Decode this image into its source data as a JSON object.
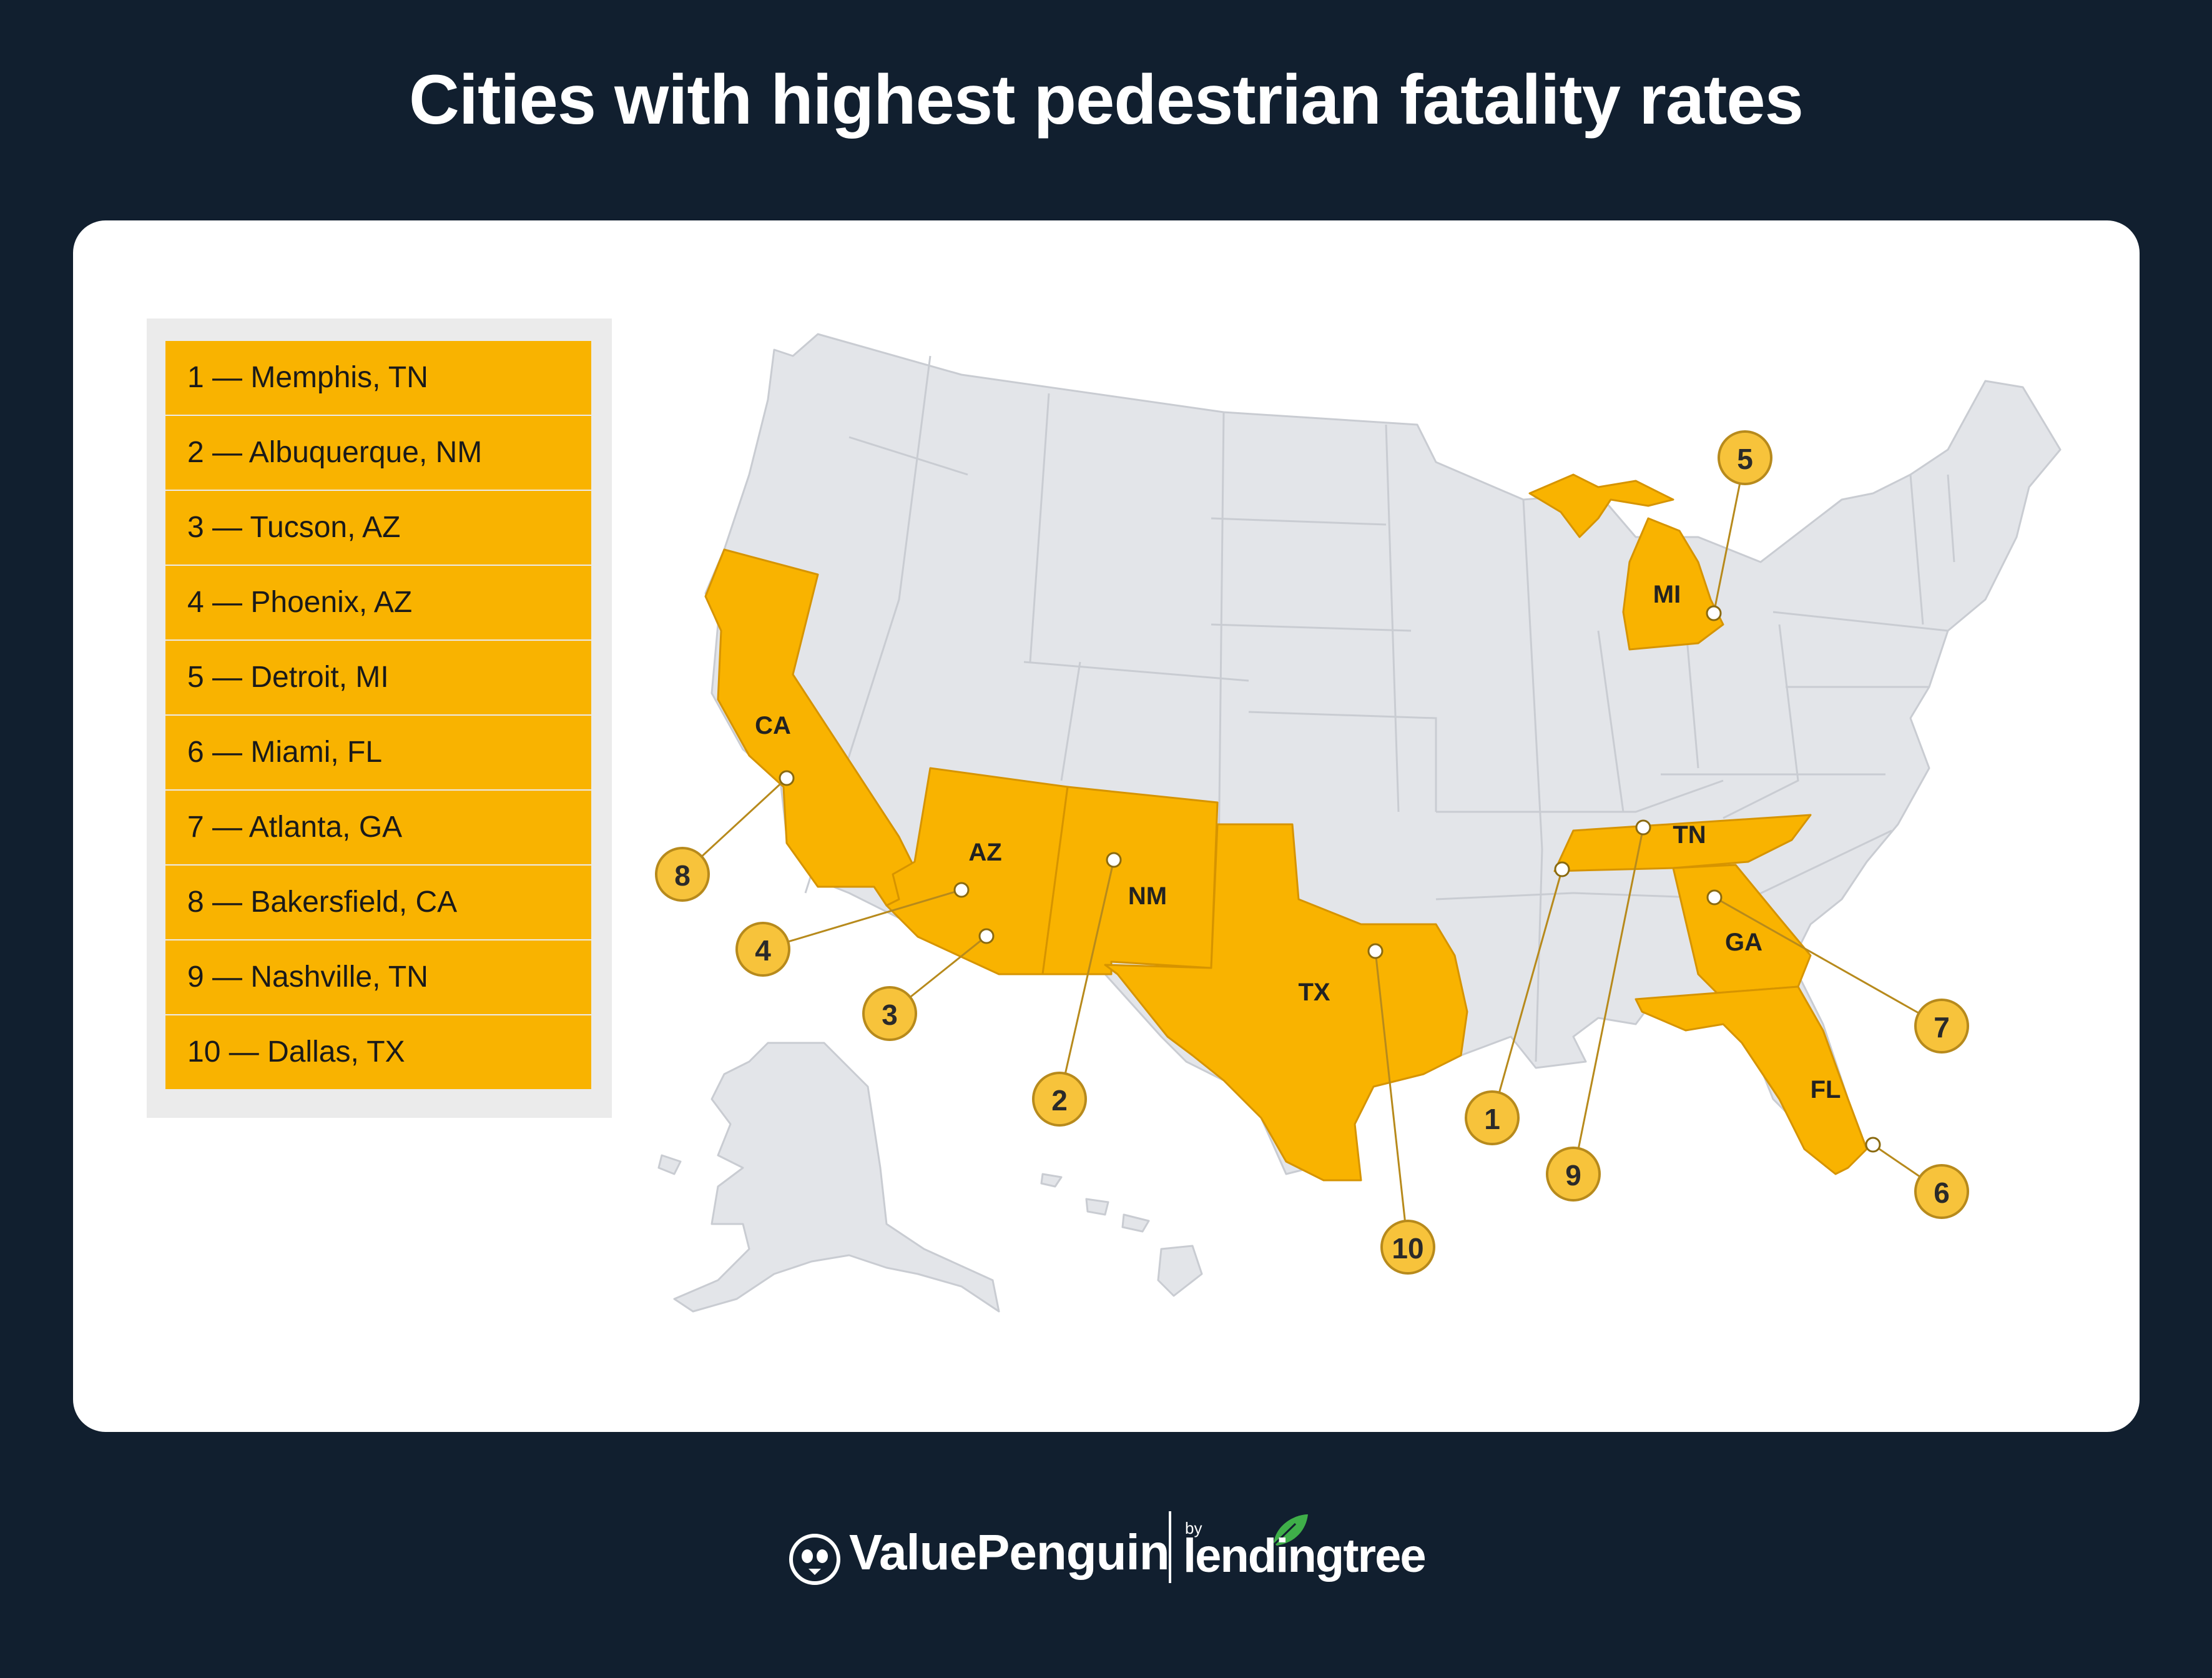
{
  "title": "Cities with highest pedestrian fatality rates",
  "legend": [
    "1 — Memphis, TN",
    "2 — Albuquerque, NM",
    "3 — Tucson, AZ",
    "4 — Phoenix, AZ",
    "5 — Detroit, MI",
    "6 — Miami, FL",
    "7 — Atlanta, GA",
    "8 — Bakersfield, CA",
    "9 — Nashville, TN",
    "10 — Dallas, TX"
  ],
  "state_labels": {
    "CA": "CA",
    "AZ": "AZ",
    "NM": "NM",
    "TX": "TX",
    "MI": "MI",
    "TN": "TN",
    "GA": "GA",
    "FL": "FL"
  },
  "markers": [
    "1",
    "2",
    "3",
    "4",
    "5",
    "6",
    "7",
    "8",
    "9",
    "10"
  ],
  "colors": {
    "background": "#111f2f",
    "card": "#ffffff",
    "highlight": "#f9b300",
    "state_default": "#e3e5e9",
    "state_border": "#c9ccd2",
    "badge": "#f7c33b",
    "leader_line": "#b78a1c"
  },
  "footer": {
    "brand": "ValuePenguin",
    "by": "by",
    "partner": "lendingtree"
  },
  "icons": [
    "penguin-icon",
    "leaf-icon"
  ]
}
